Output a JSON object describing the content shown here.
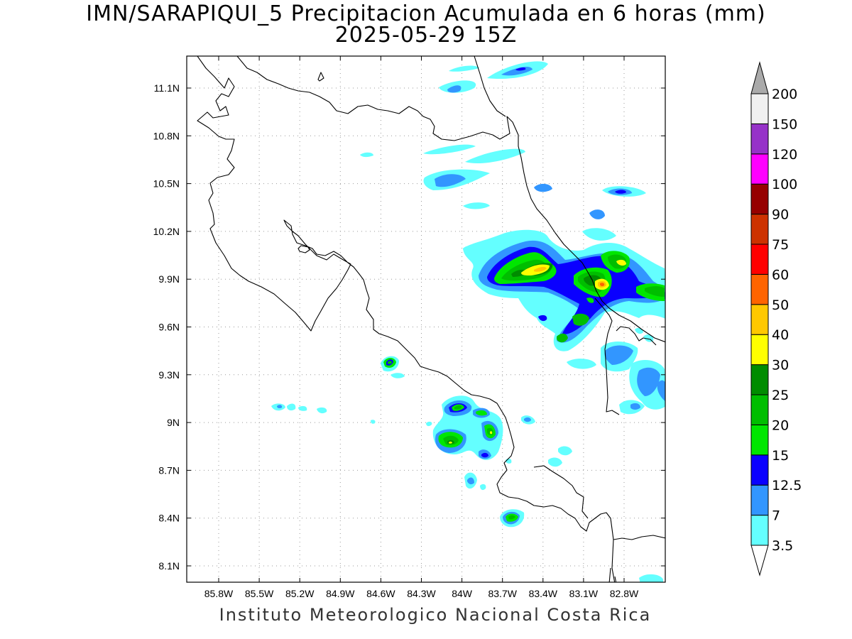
{
  "title_line1": "IMN/SARAPIQUI_5 Precipitacion Acumulada en 6 horas (mm)",
  "title_line2": "2025-05-29 15Z",
  "credit": "Instituto Meteorologico Nacional Costa Rica",
  "map": {
    "lon_ticks": [
      "85.8W",
      "85.5W",
      "85.2W",
      "84.9W",
      "84.6W",
      "84.3W",
      "84W",
      "83.7W",
      "83.4W",
      "83.1W",
      "82.8W"
    ],
    "lat_ticks": [
      "11.1N",
      "10.8N",
      "10.5N",
      "10.2N",
      "9.9N",
      "9.6N",
      "9.3N",
      "9N",
      "8.7N",
      "8.4N",
      "8.1N"
    ],
    "grid": true
  },
  "colorbar": {
    "labels": [
      "3.5",
      "7",
      "12.5",
      "15",
      "20",
      "25",
      "30",
      "40",
      "50",
      "60",
      "75",
      "90",
      "100",
      "120",
      "150",
      "200"
    ],
    "colors": [
      "#64ffff",
      "#3296ff",
      "#0a00ff",
      "#00e600",
      "#00be00",
      "#008c00",
      "#ffff00",
      "#ffc800",
      "#ff6400",
      "#ff0000",
      "#cd3200",
      "#960000",
      "#ff00ff",
      "#9632c8",
      "#f0f0f0",
      "#aaaaaa"
    ]
  }
}
